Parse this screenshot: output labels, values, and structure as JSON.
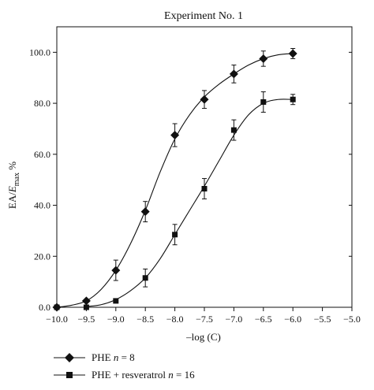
{
  "chart_data": {
    "type": "line",
    "title": "Experiment No. 1",
    "xlabel": "–log (C)",
    "ylabel_parts": {
      "pre": "EA/",
      "italic": "E",
      "sub": "max",
      "post": " %"
    },
    "xlim": [
      -10.0,
      -5.0
    ],
    "ylim": [
      0,
      110
    ],
    "x_ticks": [
      -10.0,
      -9.5,
      -9.0,
      -8.5,
      -8.0,
      -7.5,
      -7.0,
      -6.5,
      -6.0,
      -5.5,
      -5.0
    ],
    "x_tick_labels": [
      "−10.0",
      "−9.5",
      "−9.0",
      "−8.5",
      "−8.0",
      "−7.5",
      "−7.0",
      "−6.5",
      "−6.0",
      "−5.5",
      "−5.0"
    ],
    "y_ticks": [
      0,
      20,
      40,
      60,
      80,
      100
    ],
    "y_tick_labels": [
      "0.0",
      "20.0",
      "40.0",
      "60.0",
      "80.0",
      "100.0"
    ],
    "grid": false,
    "legend_position": "bottom-left, below plot",
    "series": [
      {
        "name": "PHE",
        "name_n": "n",
        "name_count": " = 8",
        "marker": "diamond",
        "color": "#111111",
        "x": [
          -10.0,
          -9.5,
          -9.0,
          -8.5,
          -8.0,
          -7.5,
          -7.0,
          -6.5,
          -6.0
        ],
        "y": [
          0.0,
          2.5,
          14.5,
          37.5,
          67.5,
          81.5,
          91.5,
          97.5,
          99.5
        ],
        "err": [
          0.0,
          0.0,
          4.0,
          4.0,
          4.5,
          3.5,
          3.5,
          3.0,
          2.0
        ],
        "curve": [
          [
            -10.0,
            0.0
          ],
          [
            -9.75,
            0.8
          ],
          [
            -9.5,
            2.5
          ],
          [
            -9.25,
            7.0
          ],
          [
            -9.0,
            14.5
          ],
          [
            -8.75,
            25.0
          ],
          [
            -8.5,
            38.0
          ],
          [
            -8.25,
            53.0
          ],
          [
            -8.0,
            66.0
          ],
          [
            -7.75,
            75.5
          ],
          [
            -7.5,
            82.5
          ],
          [
            -7.25,
            87.5
          ],
          [
            -7.0,
            91.5
          ],
          [
            -6.75,
            95.0
          ],
          [
            -6.5,
            97.5
          ],
          [
            -6.25,
            99.0
          ],
          [
            -6.0,
            99.5
          ]
        ]
      },
      {
        "name": "PHE + resveratrol",
        "name_n": "n",
        "name_count": " = 16",
        "marker": "square",
        "color": "#111111",
        "x": [
          -10.0,
          -9.5,
          -9.0,
          -8.5,
          -8.0,
          -7.5,
          -7.0,
          -6.5,
          -6.0
        ],
        "y": [
          0.0,
          0.0,
          2.5,
          11.5,
          28.5,
          46.5,
          69.5,
          80.5,
          81.5
        ],
        "err": [
          0.0,
          0.0,
          0.0,
          3.5,
          4.0,
          4.0,
          4.0,
          4.0,
          2.0
        ],
        "curve": [
          [
            -9.5,
            0.3
          ],
          [
            -9.25,
            1.0
          ],
          [
            -9.0,
            3.0
          ],
          [
            -8.75,
            6.5
          ],
          [
            -8.5,
            11.5
          ],
          [
            -8.25,
            19.0
          ],
          [
            -8.0,
            28.5
          ],
          [
            -7.75,
            38.0
          ],
          [
            -7.5,
            47.5
          ],
          [
            -7.25,
            57.5
          ],
          [
            -7.0,
            67.5
          ],
          [
            -6.75,
            75.5
          ],
          [
            -6.5,
            80.0
          ],
          [
            -6.25,
            81.5
          ],
          [
            -6.0,
            81.5
          ]
        ]
      }
    ]
  }
}
